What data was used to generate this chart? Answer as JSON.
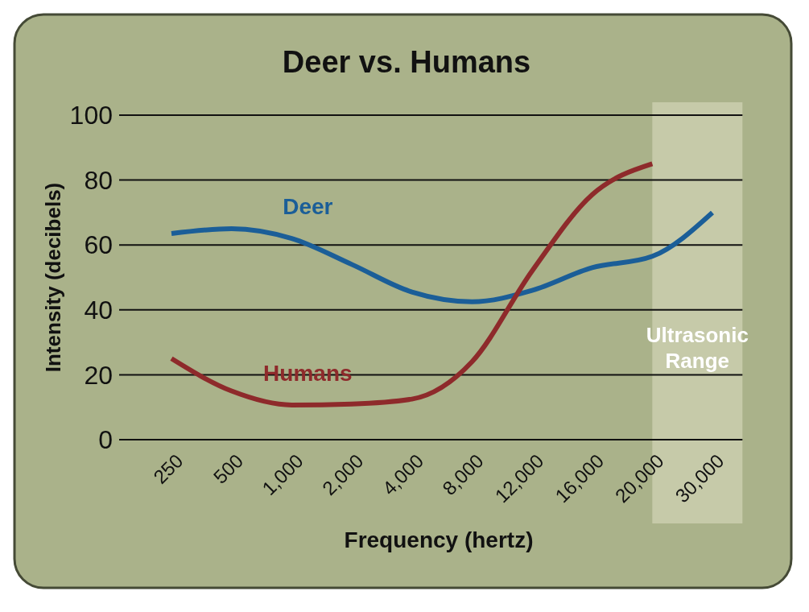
{
  "chart_data": {
    "type": "line",
    "title": "Deer vs. Humans",
    "xlabel": "Frequency (hertz)",
    "ylabel": "Intensity (decibels)",
    "categories": [
      "250",
      "500",
      "1,000",
      "2,000",
      "4,000",
      "8,000",
      "12,000",
      "16,000",
      "20,000",
      "30,000"
    ],
    "series": [
      {
        "name": "Deer",
        "color": "#1b5e98",
        "values": [
          63.5,
          65,
          62,
          54,
          45.5,
          42.5,
          46,
          53,
          56.5,
          70
        ]
      },
      {
        "name": "Humans",
        "color": "#8e2a2b",
        "values": [
          25,
          15,
          10.7,
          11,
          12.5,
          24,
          52,
          75.5,
          85,
          null
        ]
      }
    ],
    "ylim": [
      0,
      100
    ],
    "yticks": [
      0,
      20,
      40,
      60,
      80,
      100
    ],
    "grid": "y",
    "legend": false,
    "bands": [
      {
        "axis": "x",
        "from": "20,000",
        "to": "30,000",
        "label": "Ultrasonic Range",
        "color": "#c6caa9"
      }
    ]
  }
}
